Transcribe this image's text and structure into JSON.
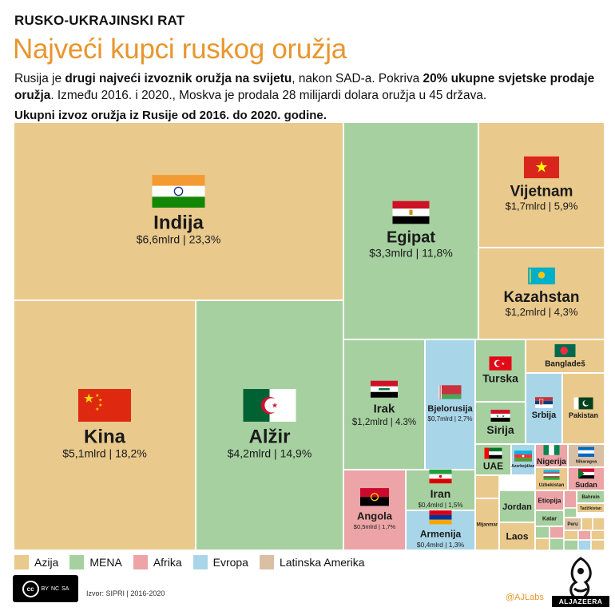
{
  "header": {
    "kicker": "RUSKO-UKRAJINSKI RAT",
    "title": "Najveći kupci ruskog oružja",
    "desc_parts": [
      "Rusija je ",
      "drugi najveći izvoznik oružja na svijetu",
      ", nakon SAD-a. Pokriva ",
      "20% ukupne svjetske prodaje oružja",
      ". Između 2016. i 2020., Moskva je prodala 28 milijardi dolara oružja u 45 država."
    ],
    "subtitle": "Ukupni izvoz oružja iz Rusije od 2016. do 2020. godine."
  },
  "colors": {
    "Azija": "#e9c98c",
    "MENA": "#a6d0a0",
    "Afrika": "#eca4a6",
    "Evropa": "#a9d5e8",
    "Latinska Amerika": "#d9bfa3",
    "accent": "#e8962e"
  },
  "chart_data": {
    "type": "treemap",
    "unit": "mlrd $",
    "items": [
      {
        "name": "Indija",
        "value": 6.6,
        "value_label": "$6,6mlrd | 23,3%",
        "region": "Azija",
        "flag": "india"
      },
      {
        "name": "Kina",
        "value": 5.1,
        "value_label": "$5,1mlrd | 18,2%",
        "region": "Azija",
        "flag": "china"
      },
      {
        "name": "Alžir",
        "value": 4.2,
        "value_label": "$4,2mlrd | 14,9%",
        "region": "MENA",
        "flag": "algeria"
      },
      {
        "name": "Egipat",
        "value": 3.3,
        "value_label": "$3,3mlrd | 11,8%",
        "region": "MENA",
        "flag": "egypt"
      },
      {
        "name": "Vijetnam",
        "value": 1.7,
        "value_label": "$1,7mlrd | 5,9%",
        "region": "Azija",
        "flag": "vietnam"
      },
      {
        "name": "Kazahstan",
        "value": 1.2,
        "value_label": "$1,2mlrd | 4,3%",
        "region": "Azija",
        "flag": "kazakhstan"
      },
      {
        "name": "Irak",
        "value": 1.2,
        "value_label": "$1,2mlrd | 4.3%",
        "region": "MENA",
        "flag": "iraq"
      },
      {
        "name": "Bjelorusija",
        "value": 0.7,
        "value_label": "$0,7mlrd | 2,7%",
        "region": "Evropa",
        "flag": "belarus"
      },
      {
        "name": "Turska",
        "value": null,
        "value_label": "",
        "region": "MENA",
        "flag": "turkey"
      },
      {
        "name": "Bangladeš",
        "value": null,
        "value_label": "",
        "region": "Azija",
        "flag": "bangladesh"
      },
      {
        "name": "Sirija",
        "value": null,
        "value_label": "",
        "region": "MENA",
        "flag": "syria"
      },
      {
        "name": "Srbija",
        "value": null,
        "value_label": "",
        "region": "Evropa",
        "flag": "serbia"
      },
      {
        "name": "Pakistan",
        "value": null,
        "value_label": "",
        "region": "Azija",
        "flag": "pakistan"
      },
      {
        "name": "Angola",
        "value": 0.5,
        "value_label": "$0,5mlrd | 1,7%",
        "region": "Afrika",
        "flag": "angola"
      },
      {
        "name": "Iran",
        "value": 0.4,
        "value_label": "$0,4mlrd | 1,5%",
        "region": "MENA",
        "flag": "iran"
      },
      {
        "name": "Armenija",
        "value": 0.4,
        "value_label": "$0,4mlrd | 1,3%",
        "region": "Evropa",
        "flag": "armenia"
      },
      {
        "name": "UAE",
        "value": null,
        "value_label": "",
        "region": "MENA",
        "flag": "uae"
      },
      {
        "name": "Azerbejdžan",
        "value": null,
        "value_label": "",
        "region": "Evropa",
        "flag": "azerbaijan"
      },
      {
        "name": "Nigerija",
        "value": null,
        "value_label": "",
        "region": "Afrika",
        "flag": "nigeria"
      },
      {
        "name": "Nikaragva",
        "value": null,
        "value_label": "",
        "region": "Latinska Amerika",
        "flag": "nicaragua"
      },
      {
        "name": "Uzbekistan",
        "value": null,
        "value_label": "",
        "region": "Azija",
        "flag": "uzbekistan"
      },
      {
        "name": "Sudan",
        "value": null,
        "value_label": "",
        "region": "Afrika",
        "flag": "sudan"
      },
      {
        "name": "Jordan",
        "value": null,
        "value_label": "",
        "region": "MENA",
        "flag": null
      },
      {
        "name": "Etiopija",
        "value": null,
        "value_label": "",
        "region": "Afrika",
        "flag": null
      },
      {
        "name": "Bahrein",
        "value": null,
        "value_label": "",
        "region": "MENA",
        "flag": null
      },
      {
        "name": "Tadžikistan",
        "value": null,
        "value_label": "",
        "region": "Azija",
        "flag": null
      },
      {
        "name": "Mijanmar",
        "value": null,
        "value_label": "",
        "region": "Azija",
        "flag": null
      },
      {
        "name": "Katar",
        "value": null,
        "value_label": "",
        "region": "MENA",
        "flag": null
      },
      {
        "name": "Peru",
        "value": null,
        "value_label": "",
        "region": "Latinska Amerika",
        "flag": null
      },
      {
        "name": "Laos",
        "value": null,
        "value_label": "",
        "region": "Azija",
        "flag": null
      }
    ]
  },
  "legend": [
    {
      "label": "Azija",
      "region": "Azija"
    },
    {
      "label": "MENA",
      "region": "MENA"
    },
    {
      "label": "Afrika",
      "region": "Afrika"
    },
    {
      "label": "Evropa",
      "region": "Evropa"
    },
    {
      "label": "Latinska Amerika",
      "region": "Latinska Amerika"
    }
  ],
  "footer": {
    "source": "Izvor: SIPRI | 2016-2020",
    "handle": "@AJLabs",
    "logo_text": "ALJAZEERA",
    "license": [
      "cc",
      "BY",
      "NC",
      "SA"
    ]
  }
}
